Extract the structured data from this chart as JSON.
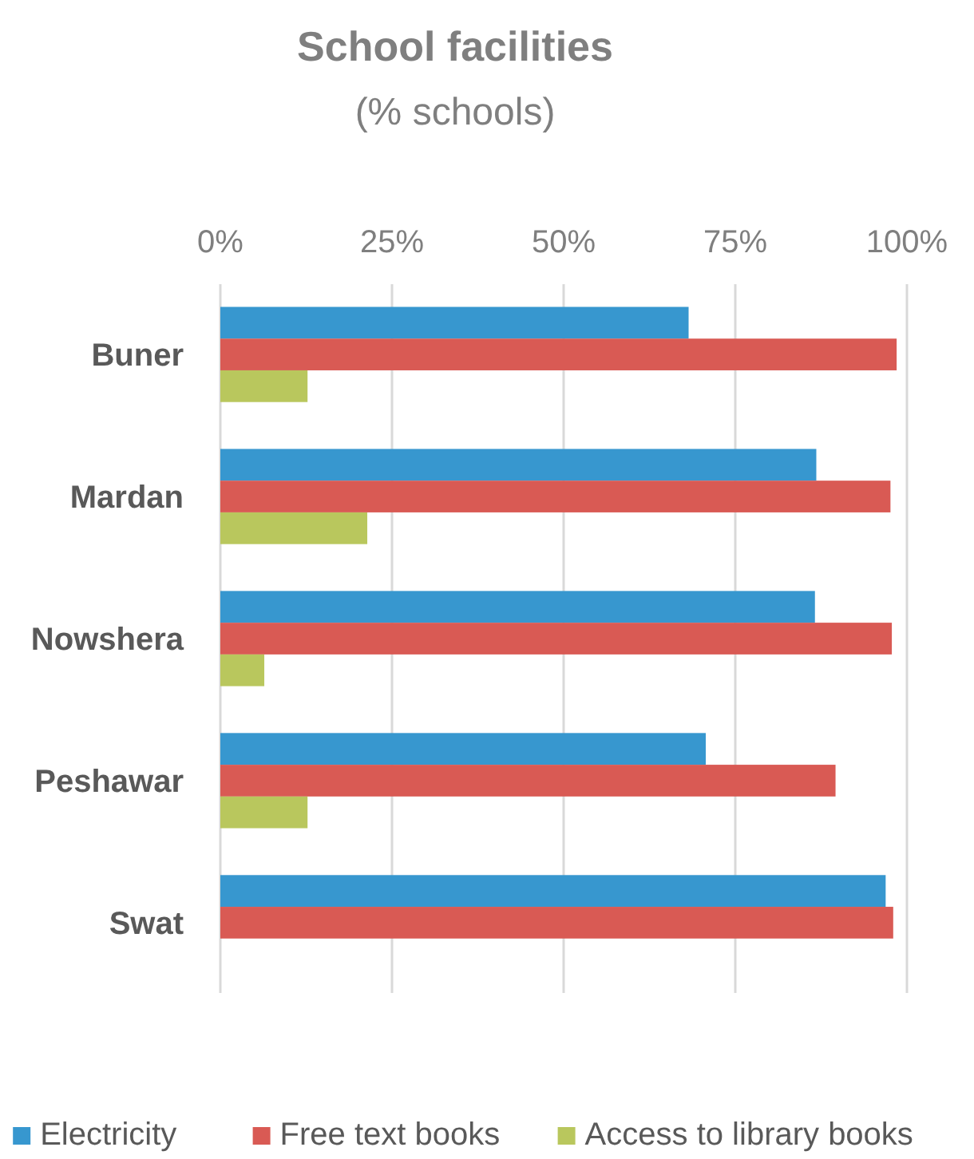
{
  "chart_data": {
    "type": "bar",
    "orientation": "horizontal",
    "title": "School facilities",
    "subtitle": "(% schools)",
    "categories": [
      "Buner",
      "Mardan",
      "Nowshera",
      "Peshawar",
      "Swat"
    ],
    "series": [
      {
        "name": "Electricity",
        "color": "#3797cf",
        "values": [
          68.2,
          86.8,
          86.6,
          70.7,
          96.9
        ]
      },
      {
        "name": "Free text books",
        "color": "#d95a54",
        "values": [
          98.5,
          97.6,
          97.8,
          89.6,
          98.0
        ]
      },
      {
        "name": "Access to library books",
        "color": "#b9c75d",
        "values": [
          12.7,
          21.4,
          6.4,
          12.7,
          0
        ]
      }
    ],
    "xlim": [
      0,
      100
    ],
    "xticks": [
      {
        "value": 0,
        "label": "0%"
      },
      {
        "value": 25,
        "label": "25%"
      },
      {
        "value": 50,
        "label": "50%"
      },
      {
        "value": 75,
        "label": "75%"
      },
      {
        "value": 100,
        "label": "100%"
      }
    ],
    "grid": "x",
    "legend": "bottom"
  }
}
